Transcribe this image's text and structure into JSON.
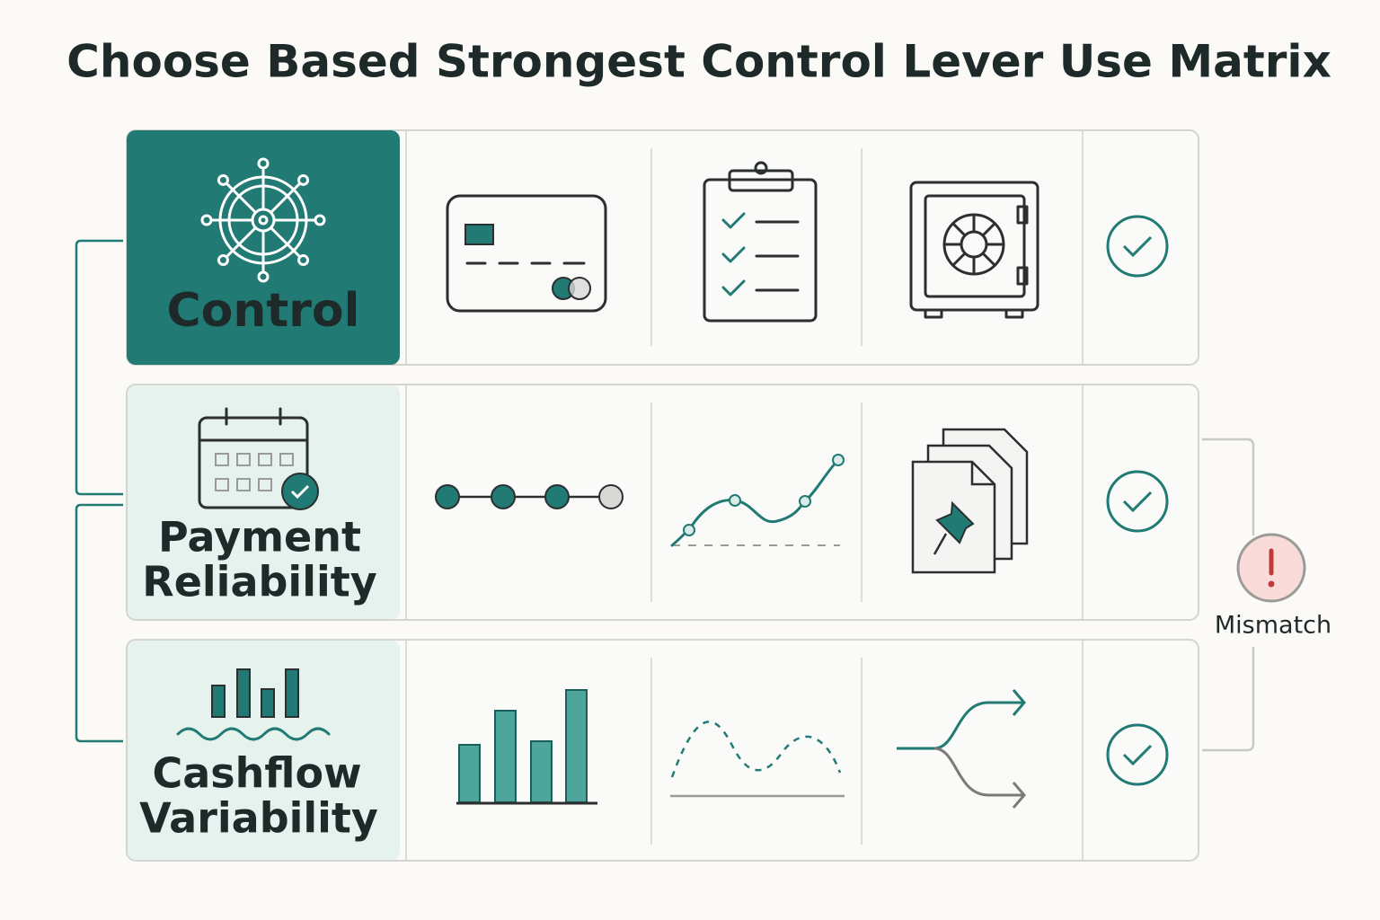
{
  "title": "Choose Based Strongest Control Lever Use Matrix",
  "rows": [
    {
      "label_lines": [
        "Control"
      ]
    },
    {
      "label_lines": [
        "Payment",
        "Reliability"
      ]
    },
    {
      "label_lines": [
        "Cashflow",
        "Variability"
      ]
    }
  ],
  "mismatch": {
    "label": "Mismatch"
  }
}
